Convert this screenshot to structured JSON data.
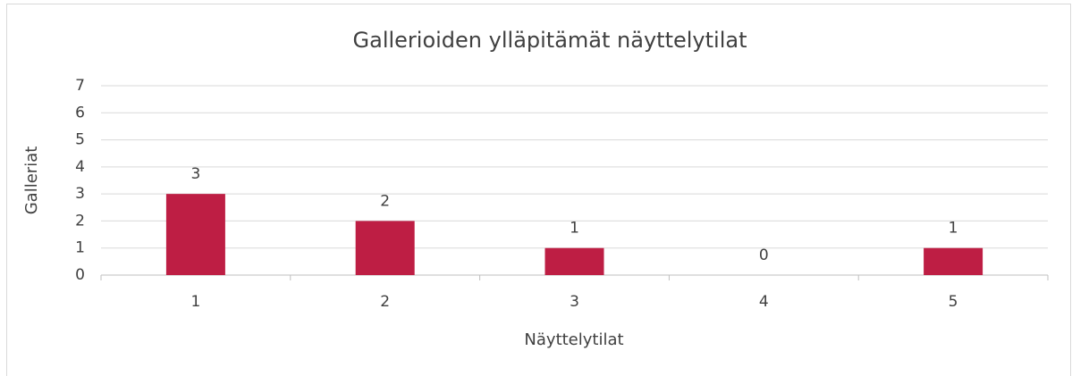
{
  "chart_data": {
    "type": "bar",
    "title": "Gallerioiden ylläpitämät näyttelytilat",
    "x_label": "Näyttelytilat",
    "y_label": "Galleriat",
    "categories": [
      "1",
      "2",
      "3",
      "4",
      "5"
    ],
    "values": [
      3,
      2,
      1,
      0,
      1
    ],
    "color": "#be1e44",
    "ylim": [
      0,
      7
    ],
    "yticks": [
      0,
      1,
      2,
      3,
      4,
      5,
      6,
      7
    ],
    "grid": true,
    "data_labels": true
  }
}
